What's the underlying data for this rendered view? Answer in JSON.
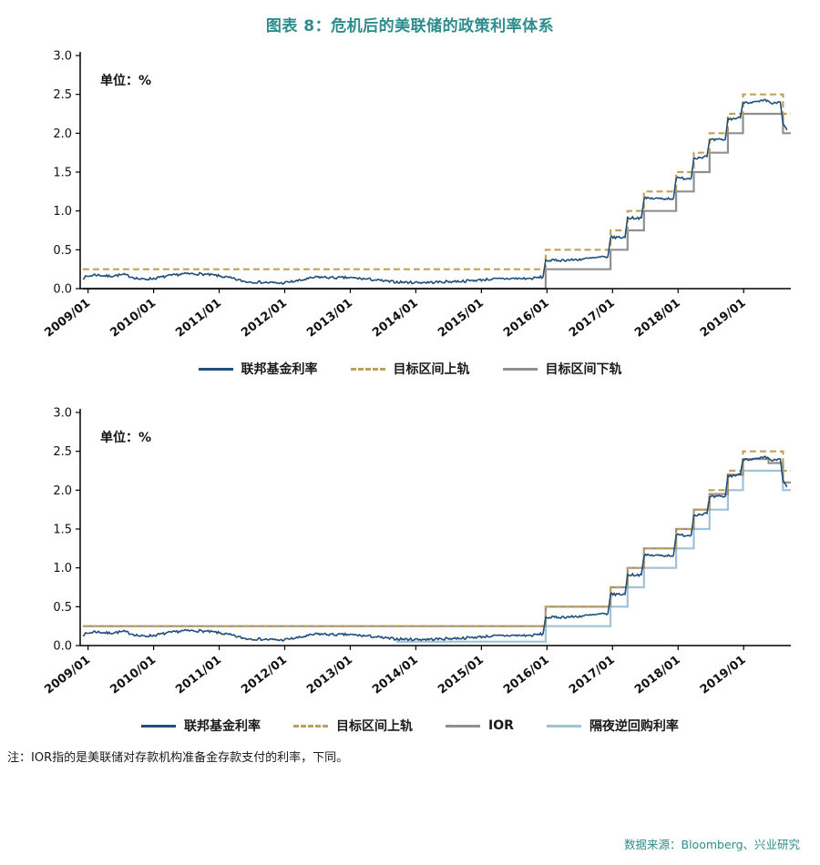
{
  "page": {
    "title": "图表 8：危机后的美联储的政策利率体系",
    "note": "注：IOR指的是美联储对存款机构准备金存款支付的利率，下同。",
    "source": "数据来源：Bloomberg、兴业研究"
  },
  "colors": {
    "title_teal": "#2e8c8c",
    "ffr_navy": "#1f4e79",
    "target_upper_tan": "#c0a05a",
    "gray": "#8f8f8f",
    "rrp_light_blue": "#9fc2d8",
    "axis_black": "#111111"
  },
  "chart_data": [
    {
      "type": "line",
      "unit_label": "单位：%",
      "ylim": [
        0,
        3
      ],
      "y_ticks": [
        0,
        0.5,
        1,
        1.5,
        2,
        2.5,
        3
      ],
      "xlim": [
        2008.88,
        2019.72
      ],
      "x_ticks": [
        {
          "x": 2009,
          "label": "2009/01"
        },
        {
          "x": 2010,
          "label": "2010/01"
        },
        {
          "x": 2011,
          "label": "2011/01"
        },
        {
          "x": 2012,
          "label": "2012/01"
        },
        {
          "x": 2013,
          "label": "2013/01"
        },
        {
          "x": 2014,
          "label": "2014/01"
        },
        {
          "x": 2015,
          "label": "2015/01"
        },
        {
          "x": 2016,
          "label": "2016/01"
        },
        {
          "x": 2017,
          "label": "2017/01"
        },
        {
          "x": 2018,
          "label": "2018/01"
        },
        {
          "x": 2019,
          "label": "2019/01"
        }
      ],
      "grid": false,
      "legend_position": "bottom",
      "series": [
        {
          "key": "ffr",
          "name": "联邦基金利率",
          "color": "#1f4e79",
          "style": "solid",
          "width": 1.6,
          "mode": "noisy",
          "points": [
            [
              2008.92,
              0.14
            ],
            [
              2009.1,
              0.18
            ],
            [
              2009.3,
              0.16
            ],
            [
              2009.55,
              0.18
            ],
            [
              2009.8,
              0.12
            ],
            [
              2010.0,
              0.13
            ],
            [
              2010.2,
              0.16
            ],
            [
              2010.45,
              0.19
            ],
            [
              2010.7,
              0.19
            ],
            [
              2010.95,
              0.17
            ],
            [
              2011.15,
              0.14
            ],
            [
              2011.4,
              0.09
            ],
            [
              2011.7,
              0.08
            ],
            [
              2011.95,
              0.07
            ],
            [
              2012.2,
              0.1
            ],
            [
              2012.5,
              0.15
            ],
            [
              2012.75,
              0.14
            ],
            [
              2013.0,
              0.14
            ],
            [
              2013.3,
              0.12
            ],
            [
              2013.6,
              0.09
            ],
            [
              2013.9,
              0.08
            ],
            [
              2014.2,
              0.08
            ],
            [
              2014.5,
              0.09
            ],
            [
              2014.8,
              0.1
            ],
            [
              2015.1,
              0.12
            ],
            [
              2015.45,
              0.13
            ],
            [
              2015.75,
              0.13
            ],
            [
              2015.94,
              0.15
            ],
            [
              2015.98,
              0.36
            ],
            [
              2016.4,
              0.37
            ],
            [
              2016.93,
              0.41
            ],
            [
              2016.97,
              0.66
            ],
            [
              2017.19,
              0.66
            ],
            [
              2017.23,
              0.91
            ],
            [
              2017.44,
              0.91
            ],
            [
              2017.48,
              1.16
            ],
            [
              2017.93,
              1.16
            ],
            [
              2017.97,
              1.42
            ],
            [
              2018.2,
              1.42
            ],
            [
              2018.24,
              1.68
            ],
            [
              2018.44,
              1.7
            ],
            [
              2018.48,
              1.91
            ],
            [
              2018.72,
              1.92
            ],
            [
              2018.76,
              2.18
            ],
            [
              2018.95,
              2.2
            ],
            [
              2018.99,
              2.4
            ],
            [
              2019.2,
              2.4
            ],
            [
              2019.33,
              2.42
            ],
            [
              2019.45,
              2.38
            ],
            [
              2019.56,
              2.4
            ],
            [
              2019.6,
              2.12
            ],
            [
              2019.66,
              2.04
            ]
          ]
        },
        {
          "key": "target-upper",
          "name": "目标区间上轨",
          "color": "#c0a05a",
          "style": "dashed",
          "width": 2.2,
          "mode": "step",
          "points": [
            [
              2008.92,
              0.25
            ],
            [
              2015.98,
              0.5
            ],
            [
              2016.97,
              0.75
            ],
            [
              2017.23,
              1.0
            ],
            [
              2017.48,
              1.25
            ],
            [
              2017.97,
              1.5
            ],
            [
              2018.24,
              1.75
            ],
            [
              2018.48,
              2.0
            ],
            [
              2018.76,
              2.25
            ],
            [
              2018.99,
              2.5
            ],
            [
              2019.6,
              2.25
            ]
          ]
        },
        {
          "key": "target-lower",
          "name": "目标区间下轨",
          "color": "#8f8f8f",
          "style": "solid",
          "width": 2.2,
          "mode": "step",
          "points": [
            [
              2008.92,
              0.0
            ],
            [
              2015.98,
              0.25
            ],
            [
              2016.97,
              0.5
            ],
            [
              2017.23,
              0.75
            ],
            [
              2017.48,
              1.0
            ],
            [
              2017.97,
              1.25
            ],
            [
              2018.24,
              1.5
            ],
            [
              2018.48,
              1.75
            ],
            [
              2018.76,
              2.0
            ],
            [
              2018.99,
              2.25
            ],
            [
              2019.6,
              2.0
            ]
          ]
        }
      ]
    },
    {
      "type": "line",
      "unit_label": "单位：%",
      "ylim": [
        0,
        3
      ],
      "y_ticks": [
        0,
        0.5,
        1,
        1.5,
        2,
        2.5,
        3
      ],
      "xlim": [
        2008.88,
        2019.72
      ],
      "x_ticks": [
        {
          "x": 2009,
          "label": "2009/01"
        },
        {
          "x": 2010,
          "label": "2010/01"
        },
        {
          "x": 2011,
          "label": "2011/01"
        },
        {
          "x": 2012,
          "label": "2012/01"
        },
        {
          "x": 2013,
          "label": "2013/01"
        },
        {
          "x": 2014,
          "label": "2014/01"
        },
        {
          "x": 2015,
          "label": "2015/01"
        },
        {
          "x": 2016,
          "label": "2016/01"
        },
        {
          "x": 2017,
          "label": "2017/01"
        },
        {
          "x": 2018,
          "label": "2018/01"
        },
        {
          "x": 2019,
          "label": "2019/01"
        }
      ],
      "grid": false,
      "legend_position": "bottom",
      "series": [
        {
          "key": "ffr",
          "name": "联邦基金利率",
          "color": "#1f4e79",
          "style": "solid",
          "width": 1.6,
          "mode": "noisy",
          "points": [
            [
              2008.92,
              0.14
            ],
            [
              2009.1,
              0.18
            ],
            [
              2009.3,
              0.16
            ],
            [
              2009.55,
              0.18
            ],
            [
              2009.8,
              0.12
            ],
            [
              2010.0,
              0.13
            ],
            [
              2010.2,
              0.16
            ],
            [
              2010.45,
              0.19
            ],
            [
              2010.7,
              0.19
            ],
            [
              2010.95,
              0.17
            ],
            [
              2011.15,
              0.14
            ],
            [
              2011.4,
              0.09
            ],
            [
              2011.7,
              0.08
            ],
            [
              2011.95,
              0.07
            ],
            [
              2012.2,
              0.1
            ],
            [
              2012.5,
              0.15
            ],
            [
              2012.75,
              0.14
            ],
            [
              2013.0,
              0.14
            ],
            [
              2013.3,
              0.12
            ],
            [
              2013.6,
              0.09
            ],
            [
              2013.9,
              0.08
            ],
            [
              2014.2,
              0.08
            ],
            [
              2014.5,
              0.09
            ],
            [
              2014.8,
              0.1
            ],
            [
              2015.1,
              0.12
            ],
            [
              2015.45,
              0.13
            ],
            [
              2015.75,
              0.13
            ],
            [
              2015.94,
              0.15
            ],
            [
              2015.98,
              0.36
            ],
            [
              2016.4,
              0.37
            ],
            [
              2016.93,
              0.41
            ],
            [
              2016.97,
              0.66
            ],
            [
              2017.19,
              0.66
            ],
            [
              2017.23,
              0.91
            ],
            [
              2017.44,
              0.91
            ],
            [
              2017.48,
              1.16
            ],
            [
              2017.93,
              1.16
            ],
            [
              2017.97,
              1.42
            ],
            [
              2018.2,
              1.42
            ],
            [
              2018.24,
              1.68
            ],
            [
              2018.44,
              1.7
            ],
            [
              2018.48,
              1.91
            ],
            [
              2018.72,
              1.92
            ],
            [
              2018.76,
              2.18
            ],
            [
              2018.95,
              2.2
            ],
            [
              2018.99,
              2.4
            ],
            [
              2019.2,
              2.4
            ],
            [
              2019.33,
              2.42
            ],
            [
              2019.45,
              2.38
            ],
            [
              2019.56,
              2.4
            ],
            [
              2019.6,
              2.12
            ],
            [
              2019.66,
              2.04
            ]
          ]
        },
        {
          "key": "target-upper",
          "name": "目标区间上轨",
          "color": "#c0a05a",
          "style": "dashed",
          "width": 2.2,
          "mode": "step",
          "points": [
            [
              2008.92,
              0.25
            ],
            [
              2015.98,
              0.5
            ],
            [
              2016.97,
              0.75
            ],
            [
              2017.23,
              1.0
            ],
            [
              2017.48,
              1.25
            ],
            [
              2017.97,
              1.5
            ],
            [
              2018.24,
              1.75
            ],
            [
              2018.48,
              2.0
            ],
            [
              2018.76,
              2.25
            ],
            [
              2018.99,
              2.5
            ],
            [
              2019.6,
              2.25
            ]
          ]
        },
        {
          "key": "ior",
          "name": "IOR",
          "color": "#8f8f8f",
          "style": "solid",
          "width": 2.2,
          "mode": "step",
          "points": [
            [
              2008.92,
              0.25
            ],
            [
              2015.98,
              0.5
            ],
            [
              2016.97,
              0.75
            ],
            [
              2017.23,
              1.0
            ],
            [
              2017.48,
              1.25
            ],
            [
              2017.97,
              1.5
            ],
            [
              2018.24,
              1.75
            ],
            [
              2018.48,
              1.95
            ],
            [
              2018.76,
              2.2
            ],
            [
              2018.99,
              2.4
            ],
            [
              2019.38,
              2.35
            ],
            [
              2019.6,
              2.1
            ]
          ]
        },
        {
          "key": "on-rrp",
          "name": "隔夜逆回购利率",
          "color": "#9fc2d8",
          "style": "solid",
          "width": 2.2,
          "mode": "step",
          "points": [
            [
              2013.7,
              0.05
            ],
            [
              2015.98,
              0.25
            ],
            [
              2016.97,
              0.5
            ],
            [
              2017.23,
              0.75
            ],
            [
              2017.48,
              1.0
            ],
            [
              2017.97,
              1.25
            ],
            [
              2018.24,
              1.5
            ],
            [
              2018.48,
              1.75
            ],
            [
              2018.76,
              2.0
            ],
            [
              2018.99,
              2.25
            ],
            [
              2019.6,
              2.0
            ]
          ]
        }
      ]
    }
  ]
}
